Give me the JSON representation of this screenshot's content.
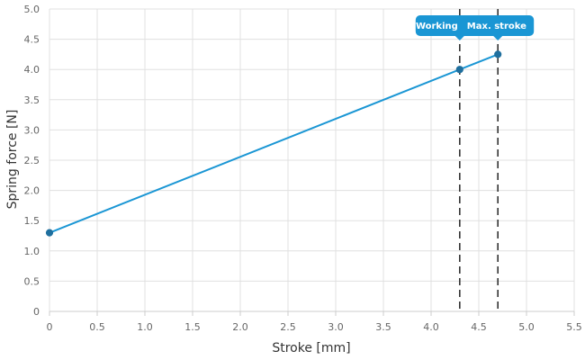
{
  "chart_data": {
    "type": "line",
    "xlabel": "Stroke [mm]",
    "ylabel": "Spring force [N]",
    "xlim": [
      0,
      5.5
    ],
    "ylim": [
      0,
      5.0
    ],
    "x_ticks": [
      "0",
      "0.5",
      "1.0",
      "1.5",
      "2.0",
      "2.5",
      "3.0",
      "3.5",
      "4.0",
      "4.5",
      "5.0",
      "5.5"
    ],
    "y_ticks": [
      "0",
      "0.5",
      "1.0",
      "1.5",
      "2.0",
      "2.5",
      "3.0",
      "3.5",
      "4.0",
      "4.5",
      "5.0"
    ],
    "grid": true,
    "series": [
      {
        "x": [
          0,
          4.3,
          4.7
        ],
        "y": [
          1.3,
          4.0,
          4.25
        ],
        "color": "#1a96d4"
      }
    ],
    "markers": [
      {
        "x": 4.3,
        "label": "Working"
      },
      {
        "x": 4.7,
        "label": "Max. stroke"
      }
    ],
    "colors": {
      "line": "#1a96d4",
      "point": "#1f6f9e",
      "grid": "#e0e0e0",
      "callout": "#1a96d4",
      "marker_line": "#333333"
    }
  }
}
